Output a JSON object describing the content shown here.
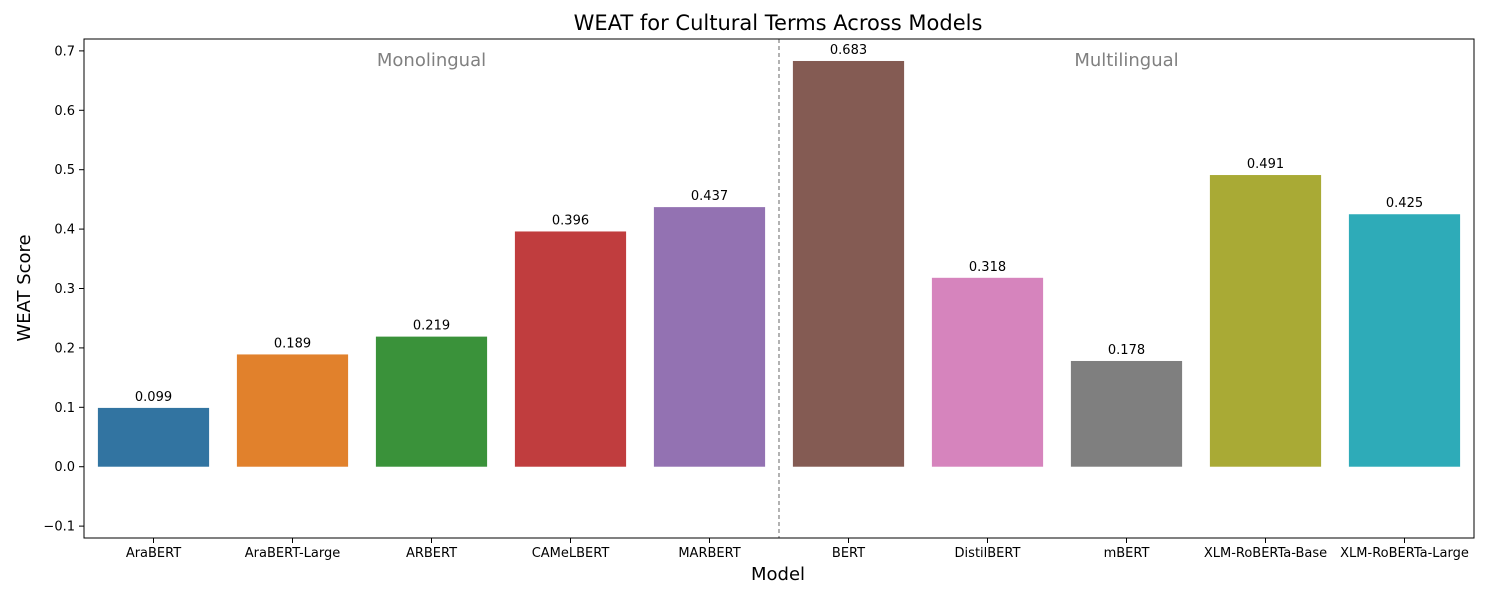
{
  "chart_data": {
    "type": "bar",
    "title": "WEAT for Cultural Terms Across Models",
    "xlabel": "Model",
    "ylabel": "WEAT Score",
    "categories": [
      "AraBERT",
      "AraBERT-Large",
      "ARBERT",
      "CAMeLBERT",
      "MARBERT",
      "BERT",
      "DistilBERT",
      "mBERT",
      "XLM-RoBERTa-Base",
      "XLM-RoBERTa-Large"
    ],
    "values": [
      0.099,
      0.189,
      0.219,
      0.396,
      0.437,
      0.683,
      0.318,
      0.178,
      0.491,
      0.425
    ],
    "data_labels": [
      "0.099",
      "0.189",
      "0.219",
      "0.396",
      "0.437",
      "0.683",
      "0.318",
      "0.178",
      "0.491",
      "0.425"
    ],
    "colors": [
      "#3274a1",
      "#e1812c",
      "#3a923a",
      "#c03d3e",
      "#9372b2",
      "#845b53",
      "#d684bd",
      "#7f7f7f",
      "#a9aa35",
      "#2eabb8"
    ],
    "ylim": [
      -0.12,
      0.72
    ],
    "yticks": [
      -0.1,
      0.0,
      0.1,
      0.2,
      0.3,
      0.4,
      0.5,
      0.6,
      0.7
    ],
    "ytick_labels": [
      "−0.1",
      "0.0",
      "0.1",
      "0.2",
      "0.3",
      "0.4",
      "0.5",
      "0.6",
      "0.7"
    ],
    "grid": false,
    "legend": "none",
    "groups": [
      {
        "label": "Monolingual",
        "from": 0,
        "to": 4
      },
      {
        "label": "Multilingual",
        "from": 5,
        "to": 9
      }
    ],
    "separator_after_index": 4,
    "separator_style": "dashed"
  }
}
